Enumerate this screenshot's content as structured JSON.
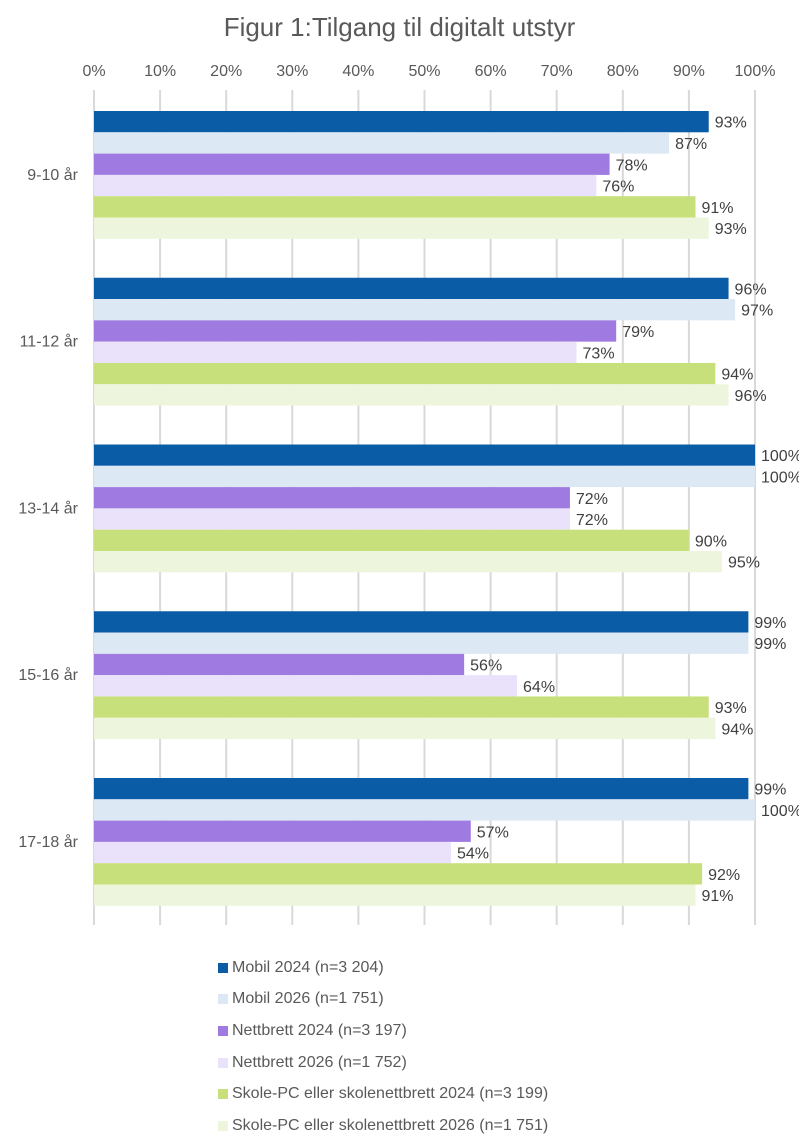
{
  "chart_data": {
    "type": "bar",
    "orientation": "horizontal",
    "title": "Figur 1:Tilgang til digitalt utstyr",
    "categories": [
      "9-10 år",
      "11-12 år",
      "13-14 år",
      "15-16 år",
      "17-18 år"
    ],
    "xlim": [
      0,
      100
    ],
    "x_ticks": [
      "0%",
      "10%",
      "20%",
      "30%",
      "40%",
      "50%",
      "60%",
      "70%",
      "80%",
      "90%",
      "100%"
    ],
    "grid": true,
    "legend_position": "bottom",
    "value_suffix": "%",
    "series": [
      {
        "name": "Mobil 2024 (n=3 204)",
        "color": "#0B5CA7",
        "values": [
          93,
          96,
          100,
          99,
          99
        ]
      },
      {
        "name": "Mobil 2026 (n=1 751)",
        "color": "#DCE8F4",
        "values": [
          87,
          97,
          100,
          99,
          100
        ]
      },
      {
        "name": "Nettbrett 2024 (n=3 197)",
        "color": "#9F7AE0",
        "values": [
          78,
          79,
          72,
          56,
          57
        ]
      },
      {
        "name": "Nettbrett 2026 (n=1 752)",
        "color": "#EAE1FB",
        "values": [
          76,
          73,
          72,
          64,
          54
        ]
      },
      {
        "name": "Skole-PC eller skolenettbrett 2024 (n=3 199)",
        "color": "#C8E07B",
        "values": [
          91,
          94,
          90,
          93,
          92
        ]
      },
      {
        "name": "Skole-PC eller skolenettbrett 2026 (n=1 751)",
        "color": "#EDF6DD",
        "values": [
          93,
          96,
          95,
          94,
          91
        ]
      }
    ]
  }
}
